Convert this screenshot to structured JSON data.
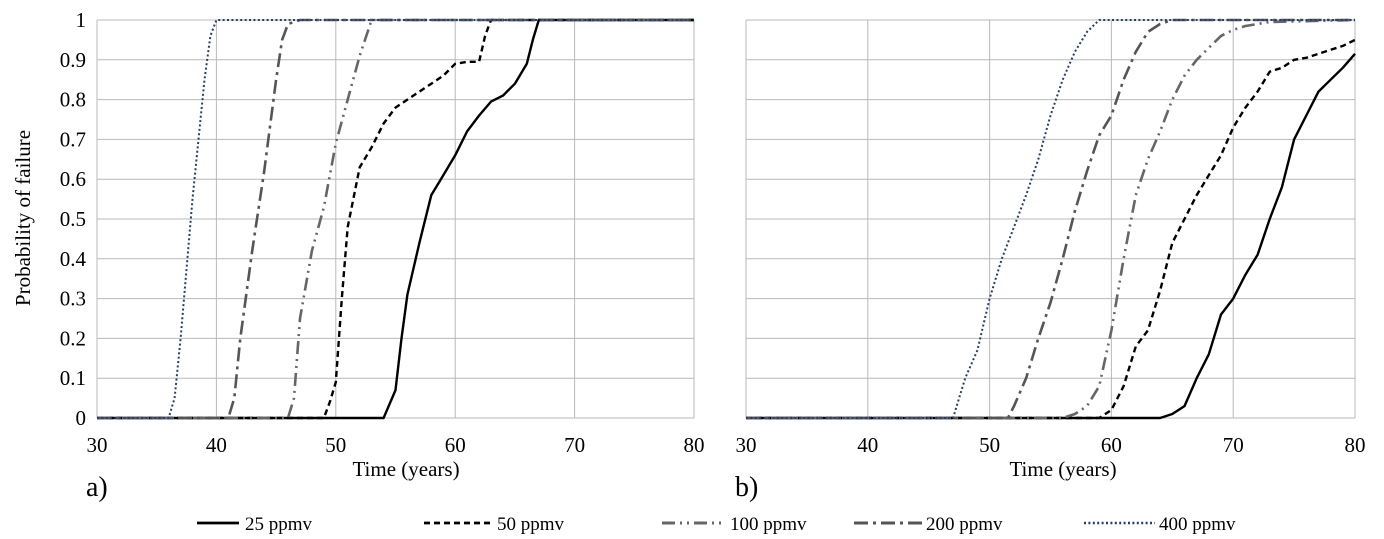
{
  "legend": [
    {
      "name": "25 ppmv",
      "color": "#000000",
      "dash": "solid"
    },
    {
      "name": "50 ppmv",
      "color": "#000000",
      "dash": "dash"
    },
    {
      "name": "100 ppmv",
      "color": "#666666",
      "dash": "longdash-dot-dot"
    },
    {
      "name": "200 ppmv",
      "color": "#555555",
      "dash": "longdash-dot"
    },
    {
      "name": "400 ppmv",
      "color": "#1f3f7a",
      "dash": "dot"
    }
  ],
  "chart_data": [
    {
      "type": "line",
      "panel_label": "a)",
      "xlabel": "Time (years)",
      "ylabel": "Probability of failure",
      "xlim": [
        30,
        80
      ],
      "ylim": [
        0,
        1
      ],
      "xticks": [
        "30",
        "40",
        "50",
        "60",
        "70",
        "80"
      ],
      "yticks": [
        "0",
        "0.1",
        "0.2",
        "0.3",
        "0.4",
        "0.5",
        "0.6",
        "0.7",
        "0.8",
        "0.9",
        "1"
      ],
      "grid": true,
      "series": [
        {
          "name": "25 ppmv",
          "points": [
            [
              30,
              0
            ],
            [
              54,
              0
            ],
            [
              55,
              0.07
            ],
            [
              55.5,
              0.2
            ],
            [
              56,
              0.31
            ],
            [
              57,
              0.44
            ],
            [
              58,
              0.56
            ],
            [
              59,
              0.61
            ],
            [
              60,
              0.66
            ],
            [
              61,
              0.72
            ],
            [
              62,
              0.76
            ],
            [
              63,
              0.795
            ],
            [
              64,
              0.81
            ],
            [
              65,
              0.84
            ],
            [
              66,
              0.89
            ],
            [
              66.5,
              0.95
            ],
            [
              67,
              1
            ],
            [
              80,
              1
            ]
          ]
        },
        {
          "name": "50 ppmv",
          "points": [
            [
              30,
              0
            ],
            [
              49,
              0
            ],
            [
              49.5,
              0.04
            ],
            [
              50,
              0.09
            ],
            [
              50.5,
              0.3
            ],
            [
              51,
              0.48
            ],
            [
              52,
              0.63
            ],
            [
              53,
              0.68
            ],
            [
              54,
              0.74
            ],
            [
              55,
              0.78
            ],
            [
              56,
              0.8
            ],
            [
              57,
              0.82
            ],
            [
              58,
              0.84
            ],
            [
              59,
              0.86
            ],
            [
              60,
              0.89
            ],
            [
              61,
              0.895
            ],
            [
              62,
              0.895
            ],
            [
              62.5,
              0.96
            ],
            [
              63,
              1
            ],
            [
              80,
              1
            ]
          ]
        },
        {
          "name": "100 ppmv",
          "points": [
            [
              30,
              0
            ],
            [
              46,
              0
            ],
            [
              46.5,
              0.05
            ],
            [
              47,
              0.25
            ],
            [
              48,
              0.42
            ],
            [
              49,
              0.53
            ],
            [
              50,
              0.69
            ],
            [
              51,
              0.8
            ],
            [
              52,
              0.91
            ],
            [
              53,
              1
            ],
            [
              80,
              1
            ]
          ]
        },
        {
          "name": "200 ppmv",
          "points": [
            [
              30,
              0
            ],
            [
              41,
              0
            ],
            [
              41.5,
              0.05
            ],
            [
              42,
              0.2
            ],
            [
              43,
              0.42
            ],
            [
              44,
              0.62
            ],
            [
              45,
              0.85
            ],
            [
              45.5,
              0.95
            ],
            [
              46,
              0.99
            ],
            [
              47,
              1
            ],
            [
              80,
              1
            ]
          ]
        },
        {
          "name": "400 ppmv",
          "points": [
            [
              30,
              0
            ],
            [
              36,
              0
            ],
            [
              36.5,
              0.05
            ],
            [
              37,
              0.2
            ],
            [
              38,
              0.55
            ],
            [
              39,
              0.85
            ],
            [
              39.5,
              0.96
            ],
            [
              40,
              1
            ],
            [
              80,
              1
            ]
          ]
        }
      ]
    },
    {
      "type": "line",
      "panel_label": "b)",
      "xlabel": "Time (years)",
      "ylabel": "",
      "xlim": [
        30,
        80
      ],
      "ylim": [
        0,
        1
      ],
      "xticks": [
        "30",
        "40",
        "50",
        "60",
        "70",
        "80"
      ],
      "yticks": [],
      "grid": true,
      "series": [
        {
          "name": "25 ppmv",
          "points": [
            [
              30,
              0
            ],
            [
              64,
              0
            ],
            [
              65,
              0.01
            ],
            [
              66,
              0.03
            ],
            [
              67,
              0.1
            ],
            [
              68,
              0.16
            ],
            [
              69,
              0.26
            ],
            [
              70,
              0.3
            ],
            [
              71,
              0.36
            ],
            [
              72,
              0.41
            ],
            [
              73,
              0.5
            ],
            [
              74,
              0.58
            ],
            [
              75,
              0.7
            ],
            [
              76,
              0.76
            ],
            [
              77,
              0.82
            ],
            [
              78,
              0.85
            ],
            [
              79,
              0.88
            ],
            [
              80,
              0.915
            ]
          ]
        },
        {
          "name": "50 ppmv",
          "points": [
            [
              30,
              0
            ],
            [
              59,
              0
            ],
            [
              60,
              0.02
            ],
            [
              61,
              0.08
            ],
            [
              62,
              0.18
            ],
            [
              63,
              0.22
            ],
            [
              64,
              0.32
            ],
            [
              65,
              0.44
            ],
            [
              66,
              0.5
            ],
            [
              67,
              0.56
            ],
            [
              68,
              0.61
            ],
            [
              69,
              0.66
            ],
            [
              70,
              0.73
            ],
            [
              71,
              0.78
            ],
            [
              72,
              0.82
            ],
            [
              73,
              0.87
            ],
            [
              74,
              0.88
            ],
            [
              75,
              0.9
            ],
            [
              76,
              0.905
            ],
            [
              77,
              0.915
            ],
            [
              78,
              0.925
            ],
            [
              79,
              0.935
            ],
            [
              80,
              0.95
            ]
          ]
        },
        {
          "name": "100 ppmv",
          "points": [
            [
              30,
              0
            ],
            [
              56,
              0
            ],
            [
              57,
              0.01
            ],
            [
              58,
              0.03
            ],
            [
              59,
              0.08
            ],
            [
              60,
              0.22
            ],
            [
              61,
              0.4
            ],
            [
              62,
              0.56
            ],
            [
              63,
              0.65
            ],
            [
              64,
              0.72
            ],
            [
              65,
              0.8
            ],
            [
              66,
              0.86
            ],
            [
              67,
              0.9
            ],
            [
              68,
              0.93
            ],
            [
              69,
              0.96
            ],
            [
              70,
              0.975
            ],
            [
              71,
              0.985
            ],
            [
              72,
              0.99
            ],
            [
              73,
              0.995
            ],
            [
              80,
              1
            ]
          ]
        },
        {
          "name": "200 ppmv",
          "points": [
            [
              30,
              0
            ],
            [
              51.5,
              0
            ],
            [
              52,
              0.03
            ],
            [
              53,
              0.1
            ],
            [
              54,
              0.2
            ],
            [
              55,
              0.29
            ],
            [
              56,
              0.4
            ],
            [
              57,
              0.52
            ],
            [
              58,
              0.62
            ],
            [
              59,
              0.71
            ],
            [
              60,
              0.76
            ],
            [
              61,
              0.85
            ],
            [
              62,
              0.92
            ],
            [
              63,
              0.97
            ],
            [
              64,
              0.99
            ],
            [
              65,
              1
            ],
            [
              80,
              1
            ]
          ]
        },
        {
          "name": "400 ppmv",
          "points": [
            [
              30,
              0
            ],
            [
              47,
              0
            ],
            [
              47.5,
              0.05
            ],
            [
              48,
              0.1
            ],
            [
              49,
              0.17
            ],
            [
              50,
              0.3
            ],
            [
              51,
              0.4
            ],
            [
              52,
              0.48
            ],
            [
              53,
              0.56
            ],
            [
              54,
              0.65
            ],
            [
              55,
              0.76
            ],
            [
              56,
              0.85
            ],
            [
              57,
              0.92
            ],
            [
              58,
              0.97
            ],
            [
              59,
              1
            ],
            [
              80,
              1
            ]
          ]
        }
      ]
    }
  ]
}
